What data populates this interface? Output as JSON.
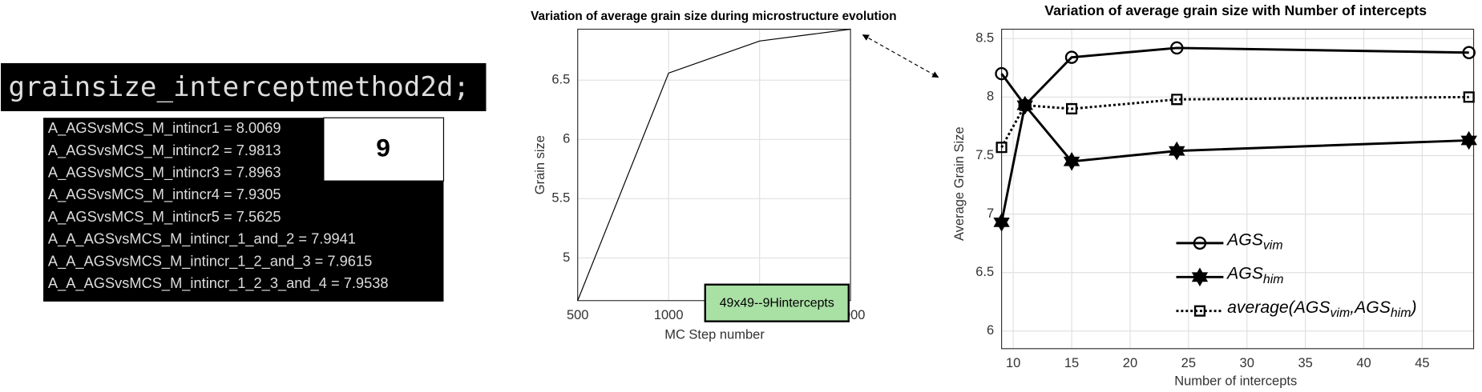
{
  "console": {
    "command": "grainsize_interceptmethod2d;",
    "lines": [
      "A_AGSvsMCS_M_intincr1 = 8.0069",
      "A_AGSvsMCS_M_intincr2 = 7.9813",
      "A_AGSvsMCS_M_intincr3 = 7.8963",
      "A_AGSvsMCS_M_intincr4 = 7.9305",
      "A_AGSvsMCS_M_intincr5 = 7.5625",
      "A_A_AGSvsMCS_M_intincr_1_and_2 = 7.9941",
      "A_A_AGSvsMCS_M_intincr_1_2_and_3 = 7.9615",
      "A_A_AGSvsMCS_M_intincr_1_2_3_and_4 = 7.9538"
    ],
    "badge": "9"
  },
  "chart_data": [
    {
      "type": "line",
      "title": "Variation of average grain size during microstructure evolution",
      "x_label": "MC Step number",
      "y_label": "Grain size",
      "x": [
        500,
        1000,
        1500,
        2000
      ],
      "values": [
        4.64,
        6.56,
        6.83,
        6.93
      ],
      "color": "#000000",
      "xlim": [
        500,
        2000
      ],
      "xticks": [
        500,
        1000,
        1500,
        2000
      ],
      "ylim": [
        4.64,
        6.93
      ],
      "yticks": [
        5,
        5.5,
        6,
        6.5
      ],
      "grid": true,
      "annotation": "49x49--9Hintercepts"
    },
    {
      "type": "line",
      "title": "Variation of average grain size with Number of intercepts",
      "x_label": "Number of intercepts",
      "y_label": "Average Grain Size",
      "x": [
        9,
        11,
        15,
        24,
        49
      ],
      "series": [
        {
          "name": "AGS_{vim}",
          "color": "#000000",
          "marker": "circle",
          "linestyle": "solid",
          "values": [
            8.2,
            7.93,
            8.34,
            8.42,
            8.38
          ]
        },
        {
          "name": "AGS_{him}",
          "color": "#000000",
          "marker": "hexagram",
          "linestyle": "solid",
          "values": [
            6.93,
            7.93,
            7.45,
            7.54,
            7.63
          ]
        },
        {
          "name": "average(AGS_{vim},AGS_{him})",
          "color": "#000000",
          "marker": "square",
          "linestyle": "dotted",
          "values": [
            7.57,
            7.93,
            7.9,
            7.98,
            8.0
          ]
        }
      ],
      "xlim": [
        9,
        49.4
      ],
      "xticks": [
        10,
        15,
        20,
        25,
        30,
        35,
        40,
        45
      ],
      "ylim": [
        5.85,
        8.58
      ],
      "yticks": [
        6,
        6.5,
        7,
        7.5,
        8,
        8.5
      ],
      "grid": true,
      "legend": "lower right"
    }
  ]
}
